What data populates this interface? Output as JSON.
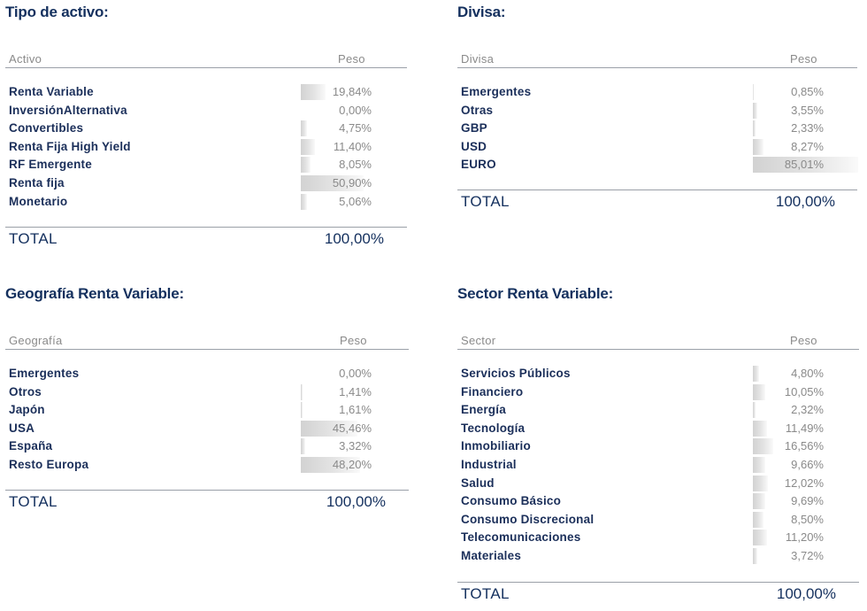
{
  "tipo_activo": {
    "title": "Tipo de activo:",
    "col_label": "Activo",
    "col_value": "Peso",
    "rows": [
      {
        "label": "Renta Variable",
        "value": "19,84%",
        "weight": 19.84
      },
      {
        "label": "InversiónAlternativa",
        "value": "0,00%",
        "weight": 0.0
      },
      {
        "label": "Convertibles",
        "value": "4,75%",
        "weight": 4.75
      },
      {
        "label": "Renta Fija High Yield",
        "value": "11,40%",
        "weight": 11.4
      },
      {
        "label": "RF Emergente",
        "value": "8,05%",
        "weight": 8.05
      },
      {
        "label": "Renta fija",
        "value": "50,90%",
        "weight": 50.9
      },
      {
        "label": "Monetario",
        "value": "5,06%",
        "weight": 5.06
      }
    ],
    "total_label": "TOTAL",
    "total_value": "100,00%"
  },
  "divisa": {
    "title": "Divisa:",
    "col_label": "Divisa",
    "col_value": "Peso",
    "rows": [
      {
        "label": "Emergentes",
        "value": "0,85%",
        "weight": 0.85
      },
      {
        "label": "Otras",
        "value": "3,55%",
        "weight": 3.55
      },
      {
        "label": "GBP",
        "value": "2,33%",
        "weight": 2.33
      },
      {
        "label": "USD",
        "value": "8,27%",
        "weight": 8.27
      },
      {
        "label": "EURO",
        "value": "85,01%",
        "weight": 85.01
      }
    ],
    "total_label": "TOTAL",
    "total_value": "100,00%"
  },
  "geografia": {
    "title": "Geografía Renta Variable:",
    "col_label": "Geografía",
    "col_value": "Peso",
    "rows": [
      {
        "label": "Emergentes",
        "value": "0,00%",
        "weight": 0.0
      },
      {
        "label": "Otros",
        "value": "1,41%",
        "weight": 1.41
      },
      {
        "label": "Japón",
        "value": "1,61%",
        "weight": 1.61
      },
      {
        "label": "USA",
        "value": "45,46%",
        "weight": 45.46
      },
      {
        "label": "España",
        "value": "3,32%",
        "weight": 3.32
      },
      {
        "label": "Resto Europa",
        "value": "48,20%",
        "weight": 48.2
      }
    ],
    "total_label": "TOTAL",
    "total_value": "100,00%"
  },
  "sector": {
    "title": "Sector Renta Variable:",
    "col_label": "Sector",
    "col_value": "Peso",
    "rows": [
      {
        "label": "Servicios Públicos",
        "value": "4,80%",
        "weight": 4.8
      },
      {
        "label": "Financiero",
        "value": "10,05%",
        "weight": 10.05
      },
      {
        "label": "Energía",
        "value": "2,32%",
        "weight": 2.32
      },
      {
        "label": "Tecnología",
        "value": "11,49%",
        "weight": 11.49
      },
      {
        "label": "Inmobiliario",
        "value": "16,56%",
        "weight": 16.56
      },
      {
        "label": "Industrial",
        "value": "9,66%",
        "weight": 9.66
      },
      {
        "label": "Salud",
        "value": "12,02%",
        "weight": 12.02
      },
      {
        "label": "Consumo Básico",
        "value": "9,69%",
        "weight": 9.69
      },
      {
        "label": "Consumo Discrecional",
        "value": "8,50%",
        "weight": 8.5
      },
      {
        "label": "Telecomunicaciones",
        "value": "11,20%",
        "weight": 11.2
      },
      {
        "label": "Materiales",
        "value": "3,72%",
        "weight": 3.72
      }
    ],
    "total_label": "TOTAL",
    "total_value": "100,00%"
  }
}
